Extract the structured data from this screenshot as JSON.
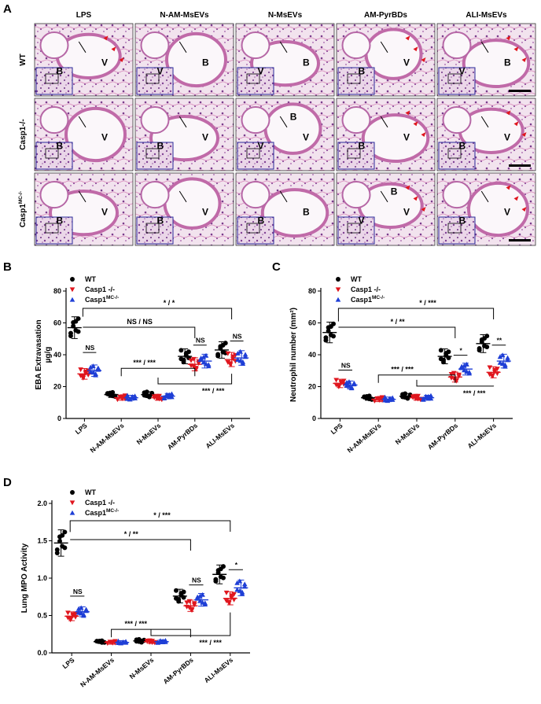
{
  "figure": {
    "panel_labels": [
      "A",
      "B",
      "C",
      "D"
    ],
    "columns": [
      "LPS",
      "N-AM-MsEVs",
      "N-MsEVs",
      "AM-PyrBDs",
      "ALI-MsEVs"
    ],
    "rows": [
      {
        "label": "WT",
        "sup": ""
      },
      {
        "label": "Casp1-/-",
        "sup": ""
      },
      {
        "label": "Casp1",
        "sup": "MC-/-"
      }
    ],
    "micrograph_labels": [
      [
        "V",
        "B"
      ],
      [
        "B",
        "V"
      ],
      [
        "B",
        "V"
      ],
      [
        "V",
        "B"
      ],
      [
        "B",
        "V"
      ],
      [
        "V",
        "B"
      ],
      [
        "V",
        "B"
      ],
      [
        "V",
        "V",
        "B"
      ],
      [
        "V",
        "B"
      ],
      [
        "V",
        "B"
      ],
      [
        "V",
        "B"
      ],
      [
        "V",
        "B"
      ],
      [
        "B",
        "B"
      ],
      [
        "V",
        "V",
        "B"
      ],
      [
        "V",
        "B"
      ]
    ]
  },
  "legend": {
    "entries": [
      {
        "name": "WT",
        "sup": "",
        "color": "#000000",
        "marker": "circle"
      },
      {
        "name": "Casp1 -/-",
        "sup": "",
        "color": "#e0161e",
        "marker": "triangle-down"
      },
      {
        "name": "Casp1",
        "sup": "MC-/-",
        "color": "#1f3fd6",
        "marker": "triangle-up"
      }
    ]
  },
  "chart_data": [
    {
      "panel": "B",
      "type": "scatter",
      "ylabel": "EBA Extravasation",
      "ylabel_unit": "µg/g",
      "ylim": [
        0,
        80
      ],
      "yticks": [
        0,
        20,
        40,
        60,
        80
      ],
      "categories": [
        "LPS",
        "N-AM-MsEVs",
        "N-MsEVs",
        "AM-PyrBDs",
        "ALI-MsEVs"
      ],
      "series": [
        {
          "name": "WT",
          "means": [
            57,
            15,
            15,
            39,
            43
          ]
        },
        {
          "name": "Casp1 -/-",
          "means": [
            28,
            13,
            13,
            34,
            37
          ]
        },
        {
          "name": "Casp1MC-/-",
          "means": [
            30,
            13,
            14,
            36,
            38
          ]
        }
      ],
      "annotations": [
        "NS",
        "* / *",
        "NS / NS",
        "NS",
        "NS",
        "*** / ***",
        "*** / ***"
      ]
    },
    {
      "panel": "C",
      "type": "scatter",
      "ylabel": "Neutrophil number (mm²)",
      "ylim": [
        0,
        80
      ],
      "yticks": [
        0,
        20,
        40,
        60,
        80
      ],
      "categories": [
        "LPS",
        "N-AM-MsEVs",
        "N-MsEVs",
        "AM-PyrBDs",
        "ALI-MsEVs"
      ],
      "series": [
        {
          "name": "WT",
          "means": [
            54,
            13,
            14,
            39,
            47
          ]
        },
        {
          "name": "Casp1 -/-",
          "means": [
            22,
            12,
            13,
            26,
            29
          ]
        },
        {
          "name": "Casp1MC-/-",
          "means": [
            21,
            12,
            13,
            31,
            36
          ]
        }
      ],
      "annotations": [
        "NS",
        "* / ***",
        "* / **",
        "*",
        "**",
        "*** / ***",
        "*** / ***"
      ]
    },
    {
      "panel": "D",
      "type": "scatter",
      "ylabel": "Lung MPO Activity",
      "ylim": [
        0,
        2.0
      ],
      "yticks": [
        0.0,
        0.5,
        1.0,
        1.5,
        2.0
      ],
      "categories": [
        "LPS",
        "N-AM-MsEVs",
        "N-MsEVs",
        "AM-PyrBDs",
        "ALI-MsEVs"
      ],
      "series": [
        {
          "name": "WT",
          "means": [
            1.47,
            0.15,
            0.16,
            0.76,
            1.05
          ]
        },
        {
          "name": "Casp1 -/-",
          "means": [
            0.49,
            0.14,
            0.15,
            0.63,
            0.73
          ]
        },
        {
          "name": "Casp1MC-/-",
          "means": [
            0.55,
            0.14,
            0.15,
            0.71,
            0.87
          ]
        }
      ],
      "annotations": [
        "NS",
        "* / ***",
        "* / **",
        "NS",
        "*",
        "*** / ***",
        "*** / ***"
      ]
    }
  ]
}
